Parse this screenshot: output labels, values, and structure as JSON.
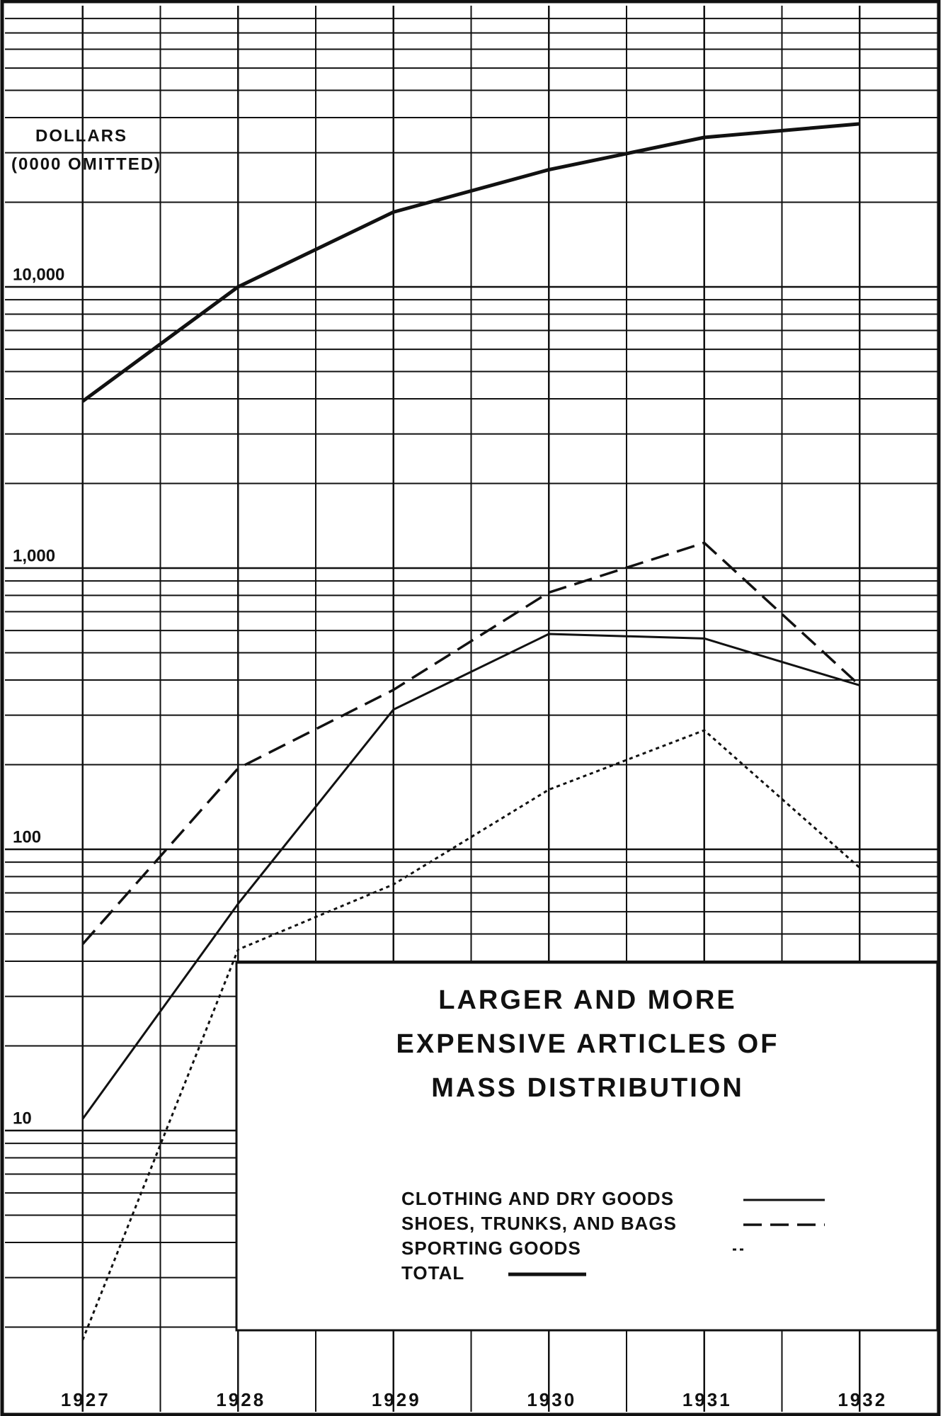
{
  "chart_data": {
    "type": "line",
    "title": [
      "LARGER AND MORE",
      "EXPENSIVE ARTICLES OF",
      "MASS DISTRIBUTION"
    ],
    "y_label": [
      "DOLLARS",
      "(0000 OMITTED)"
    ],
    "x": [
      1927,
      1928,
      1929,
      1930,
      1931,
      1932
    ],
    "xlim": [
      1926.5,
      1932.5
    ],
    "xticks": [
      1927,
      1928,
      1929,
      1930,
      1931,
      1932
    ],
    "x_minor_grid": [
      1927.5,
      1928.5,
      1929.5,
      1930.5,
      1931.5
    ],
    "log_y": true,
    "ylim": [
      1,
      100000
    ],
    "yticks": [
      10,
      100,
      {
        "value": 1000,
        "label": "1,000"
      },
      {
        "value": 10000,
        "label": "10,000"
      }
    ],
    "y_minor_grid": [
      2,
      3,
      4,
      5,
      6,
      7,
      8,
      9,
      20,
      30,
      40,
      50,
      60,
      70,
      80,
      90,
      200,
      300,
      400,
      500,
      600,
      700,
      800,
      900,
      2000,
      3000,
      4000,
      5000,
      6000,
      7000,
      8000,
      9000,
      20000,
      30000,
      40000,
      50000,
      60000,
      70000,
      80000,
      90000
    ],
    "grid": true,
    "series": [
      {
        "name": "CLOTHING AND DRY GOODS",
        "color": "#111111",
        "dash": "solid",
        "values": [
          11,
          64,
          314,
          583,
          562,
          383
        ]
      },
      {
        "name": "SHOES, TRUNKS, AND BAGS",
        "color": "#111111",
        "dash": "dashed",
        "values": [
          46,
          194,
          369,
          819,
          1230,
          383
        ]
      },
      {
        "name": "SPORTING GOODS",
        "color": "#111111",
        "dash": "dotted",
        "values": [
          1.8,
          44,
          75,
          163,
          265,
          86
        ]
      },
      {
        "name": "TOTAL",
        "color": "#111111",
        "dash": "thick",
        "values": [
          3920,
          10000,
          18450,
          26100,
          34000,
          38000
        ]
      }
    ]
  }
}
